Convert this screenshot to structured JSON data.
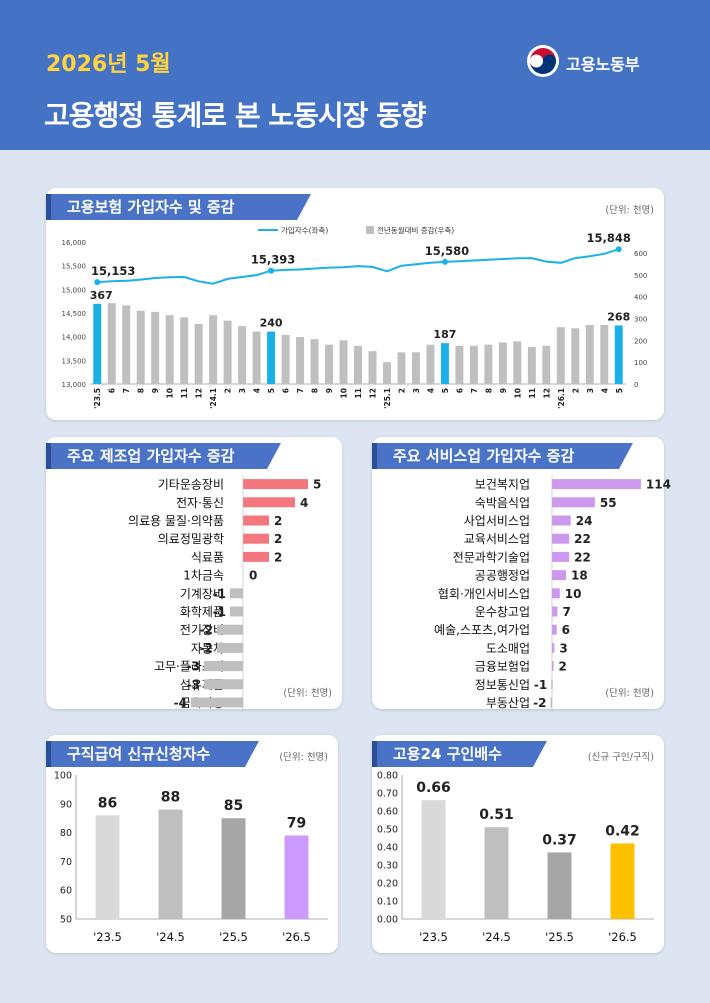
{
  "header": {
    "date": "2026년 5월",
    "title": "고용행정 통계로 본 노동시장 동향",
    "logo_text": "고용노동부"
  },
  "colors": {
    "header_bg": "#4472c4",
    "date_text": "#ffd23f",
    "line": "#1ab0e8",
    "gray_bar": "#bfbfbf",
    "highlight_bar": "#1ab0e8",
    "mfg_positive": "#f4777f",
    "svc_positive": "#cc99ee",
    "negative": "#bfbfbf",
    "purple_bar": "#cc99ff",
    "yellow_bar": "#ffc000"
  },
  "panels": {
    "insurance": {
      "title": "고용보험 가입자수 및 증감",
      "unit": "(단위: 천명)"
    },
    "manufacturing": {
      "title": "주요 제조업 가입자수 증감",
      "unit": "(단위: 천명)"
    },
    "services": {
      "title": "주요 서비스업 가입자수 증감",
      "unit": "(단위: 천명)"
    },
    "jobseeking": {
      "title": "구직급여 신규신청자수",
      "unit": "(단위: 천명)"
    },
    "jobratio": {
      "title": "고용24 구인배수",
      "unit": "(신규 구인/구직)"
    }
  },
  "chart_data": [
    {
      "type": "bar",
      "title": "고용보험 가입자수 및 증감",
      "categories": [
        "'23.5",
        "6",
        "7",
        "8",
        "9",
        "10",
        "11",
        "12",
        "'24.1",
        "2",
        "3",
        "4",
        "5",
        "6",
        "7",
        "8",
        "9",
        "10",
        "11",
        "12",
        "'25.1",
        "2",
        "3",
        "4",
        "5",
        "6",
        "7",
        "8",
        "9",
        "10",
        "11",
        "12",
        "'26.1",
        "2",
        "3",
        "4",
        "5"
      ],
      "series": [
        {
          "name": "가입자수(좌축)",
          "type": "line",
          "axis": "left",
          "values": [
            15153,
            15170,
            15180,
            15205,
            15240,
            15255,
            15260,
            15170,
            15120,
            15220,
            15260,
            15300,
            15393,
            15410,
            15420,
            15440,
            15460,
            15465,
            15490,
            15475,
            15380,
            15500,
            15530,
            15560,
            15580,
            15595,
            15610,
            15625,
            15640,
            15655,
            15660,
            15585,
            15560,
            15660,
            15700,
            15750,
            15848
          ],
          "labels": {
            "0": "15,153",
            "12": "15,393",
            "24": "15,580",
            "36": "15,848"
          }
        },
        {
          "name": "전년동월대비 증감(우축)",
          "type": "bar",
          "axis": "right",
          "values": [
            367,
            370,
            360,
            335,
            330,
            315,
            305,
            275,
            315,
            290,
            265,
            240,
            240,
            225,
            215,
            205,
            180,
            200,
            175,
            150,
            100,
            145,
            145,
            180,
            187,
            175,
            175,
            180,
            190,
            195,
            170,
            175,
            260,
            255,
            270,
            270,
            268
          ],
          "labels": {
            "0": "367",
            "12": "240",
            "24": "187",
            "36": "268"
          },
          "highlight_indices": [
            0,
            12,
            24,
            36
          ]
        }
      ],
      "y_left": {
        "min": 13000,
        "max": 16000,
        "ticks": [
          "13,000",
          "13,500",
          "14,000",
          "14,500",
          "15,000",
          "15,500",
          "16,000"
        ]
      },
      "y_right": {
        "min": 0,
        "max": 650,
        "ticks": [
          "0",
          "100",
          "200",
          "300",
          "400",
          "500",
          "600"
        ]
      },
      "legend_position": "top"
    },
    {
      "type": "bar",
      "title": "주요 제조업 가입자수 증감",
      "orientation": "horizontal",
      "categories": [
        "기타운송장비",
        "전자·통신",
        "의료용 물질·의약품",
        "의료정밀광학",
        "식료품",
        "1차금속",
        "기계장비",
        "화학제품",
        "전기장비",
        "자동차",
        "고무·플라스틱",
        "섬유제품",
        "금속가공"
      ],
      "values": [
        5,
        4,
        2,
        2,
        2,
        0,
        -1,
        -1,
        -2,
        -2,
        -3,
        -3,
        -4
      ],
      "value_labels": [
        "5",
        "4",
        "2",
        "2",
        "2",
        "0",
        "-1",
        "-1",
        "-2",
        "-2",
        "-3",
        "-3",
        "-4"
      ]
    },
    {
      "type": "bar",
      "title": "주요 서비스업 가입자수 증감",
      "orientation": "horizontal",
      "categories": [
        "보건복지업",
        "숙박음식업",
        "사업서비스업",
        "교육서비스업",
        "전문과학기술업",
        "공공행정업",
        "협회·개인서비스업",
        "운수창고업",
        "예술,스포츠,여가업",
        "도소매업",
        "금융보험업",
        "정보통신업",
        "부동산업"
      ],
      "values": [
        114,
        55,
        24,
        22,
        22,
        18,
        10,
        7,
        6,
        3,
        2,
        -1,
        -2
      ],
      "value_labels": [
        "114",
        "55",
        "24",
        "22",
        "22",
        "18",
        "10",
        "7",
        "6",
        "3",
        "2",
        "-1",
        "-2"
      ]
    },
    {
      "type": "bar",
      "title": "구직급여 신규신청자수",
      "categories": [
        "'23.5",
        "'24.5",
        "'25.5",
        "'26.5"
      ],
      "values": [
        86,
        88,
        85,
        79
      ],
      "value_labels": [
        "86",
        "88",
        "85",
        "79"
      ],
      "ylim": [
        50,
        100
      ],
      "yticks": [
        "50",
        "60",
        "70",
        "80",
        "90",
        "100"
      ],
      "bar_colors": [
        "#d9d9d9",
        "#bfbfbf",
        "#a6a6a6",
        "#cc99ff"
      ]
    },
    {
      "type": "bar",
      "title": "고용24 구인배수",
      "categories": [
        "'23.5",
        "'24.5",
        "'25.5",
        "'26.5"
      ],
      "values": [
        0.66,
        0.51,
        0.37,
        0.42
      ],
      "value_labels": [
        "0.66",
        "0.51",
        "0.37",
        "0.42"
      ],
      "ylim": [
        0,
        0.8
      ],
      "yticks": [
        "0.00",
        "0.10",
        "0.20",
        "0.30",
        "0.40",
        "0.50",
        "0.60",
        "0.70",
        "0.80"
      ],
      "bar_colors": [
        "#d9d9d9",
        "#bfbfbf",
        "#a6a6a6",
        "#ffc000"
      ]
    }
  ]
}
